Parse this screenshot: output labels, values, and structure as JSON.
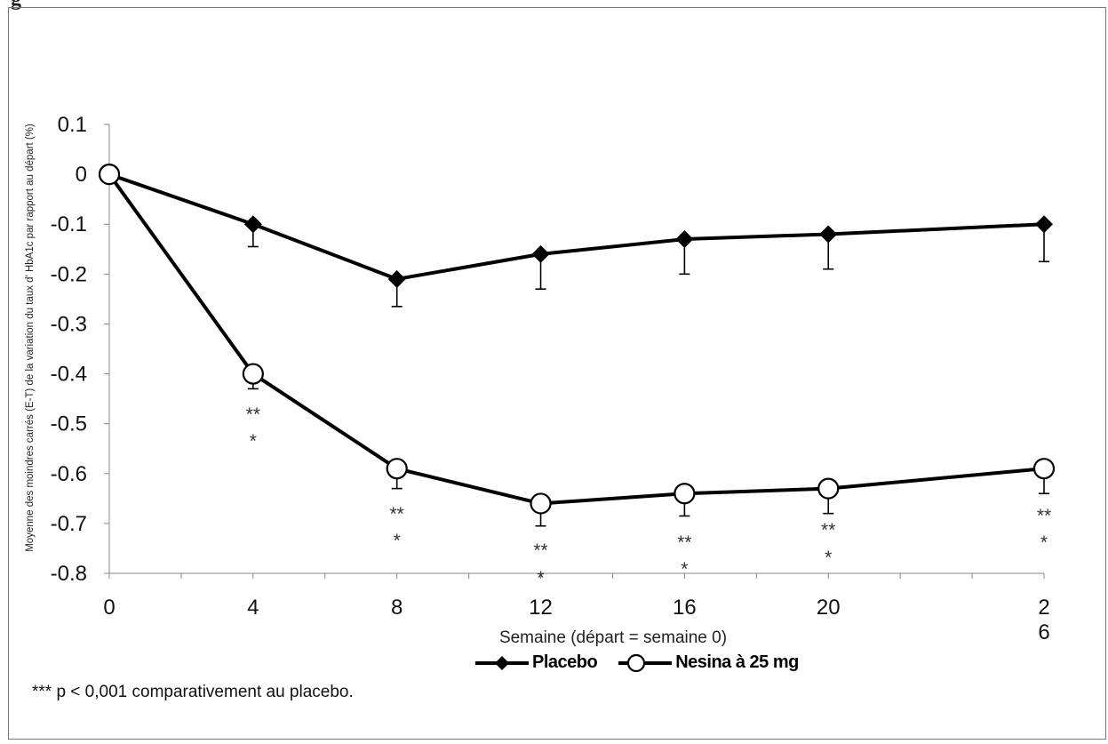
{
  "header_fragment": "g",
  "chart_data": {
    "type": "line",
    "x": [
      0,
      4,
      8,
      12,
      16,
      20,
      26
    ],
    "x_tick_labels": [
      "0",
      "4",
      "8",
      "12",
      "16",
      "20",
      "2\n6"
    ],
    "xlabel": "Semaine (départ = semaine 0)",
    "ylabel": "Moyenne des moindres carrés (E-T) de la variation du taux d'  HbA1c par rapport au départ (%)",
    "ylim": [
      -0.8,
      0.1
    ],
    "y_ticks": [
      0.1,
      0,
      -0.1,
      -0.2,
      -0.3,
      -0.4,
      -0.5,
      -0.6,
      -0.7,
      -0.8
    ],
    "y_tick_labels": [
      "0.1",
      "0",
      "-0.1",
      "-0.2",
      "-0.3",
      "-0.4",
      "-0.5",
      "-0.6",
      "-0.7",
      "-0.8"
    ],
    "grid": false,
    "legend_position": "bottom-center",
    "series": [
      {
        "name": "Placebo",
        "marker": "diamond",
        "color": "#000000",
        "values": [
          0,
          -0.1,
          -0.21,
          -0.16,
          -0.13,
          -0.12,
          -0.1
        ],
        "error": [
          0,
          0.045,
          0.055,
          0.07,
          0.07,
          0.07,
          0.075
        ]
      },
      {
        "name": "Nesina à 25 mg",
        "marker": "circle",
        "color": "#000000",
        "values": [
          0,
          -0.4,
          -0.59,
          -0.66,
          -0.64,
          -0.63,
          -0.59
        ],
        "error": [
          0,
          0.03,
          0.04,
          0.045,
          0.045,
          0.05,
          0.05
        ]
      }
    ],
    "annotations": [
      {
        "x": 4,
        "text": "***"
      },
      {
        "x": 8,
        "text": "***"
      },
      {
        "x": 12,
        "text": "***"
      },
      {
        "x": 16,
        "text": "***"
      },
      {
        "x": 20,
        "text": "***"
      },
      {
        "x": 26,
        "text": "***"
      }
    ]
  },
  "footnote": "*** p < 0,001 comparativement au placebo."
}
